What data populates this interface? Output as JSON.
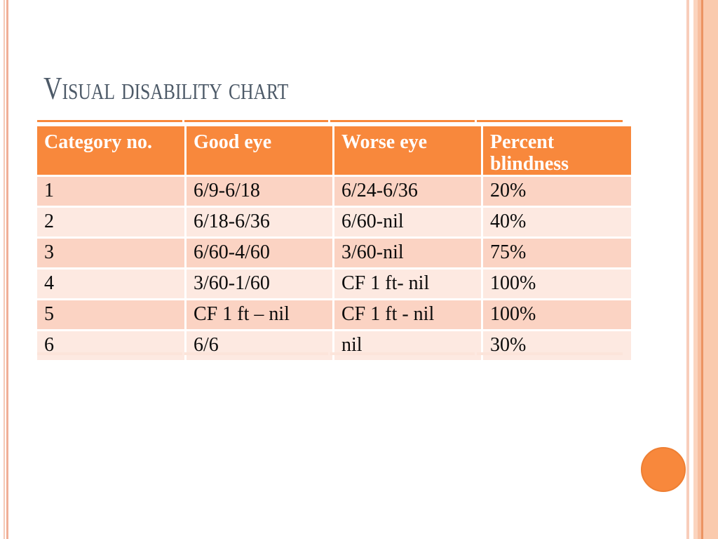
{
  "slide": {
    "title": "Visual disability chart"
  },
  "table": {
    "headers": [
      "Category no.",
      "Good eye",
      "Worse eye",
      "Percent blindness"
    ],
    "rows": [
      [
        "1",
        "6/9-6/18",
        "6/24-6/36",
        "20%"
      ],
      [
        "2",
        "6/18-6/36",
        "6/60-nil",
        "40%"
      ],
      [
        "3",
        "6/60-4/60",
        "3/60-nil",
        "75%"
      ],
      [
        "4",
        "3/60-1/60",
        "CF 1 ft- nil",
        "100%"
      ],
      [
        "5",
        "CF 1 ft – nil",
        "CF 1 ft - nil",
        "100%"
      ],
      [
        "6",
        "6/6",
        "nil",
        "30%"
      ]
    ]
  },
  "colors": {
    "accent_orange": "#F8883C",
    "row_dark_pink": "#FBD3C3",
    "row_light_pink": "#FDE9E1",
    "title_text": "#4D5A68",
    "header_text": "#FFFFFF",
    "edge_stripe_pink": "#F0AF97"
  }
}
